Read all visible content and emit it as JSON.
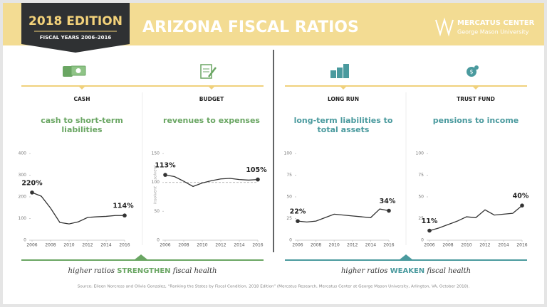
{
  "header": {
    "edition": "2018 EDITION",
    "years": "FISCAL YEARS 2006–2016",
    "title": "ARIZONA FISCAL RATIOS",
    "org": "MERCATUS CENTER",
    "org_sub": "George Mason University"
  },
  "chart_data": [
    {
      "type": "line",
      "title": "CASH",
      "subtitle": "cash to short-term liabilities",
      "accent": "#6aa663",
      "color": "#333333",
      "x": [
        2006,
        2007,
        2008,
        2009,
        2010,
        2011,
        2012,
        2013,
        2014,
        2015,
        2016
      ],
      "values": [
        220,
        203,
        148,
        82,
        75,
        85,
        105,
        108,
        110,
        114,
        114
      ],
      "value_labels": [
        "220%",
        null,
        null,
        null,
        null,
        null,
        null,
        null,
        null,
        null,
        "114%"
      ],
      "xlim": [
        2006,
        2016
      ],
      "xticks": [
        2006,
        2008,
        2010,
        2012,
        2014,
        2016
      ],
      "ylim": [
        0,
        400
      ],
      "yticks": [
        0,
        100,
        200,
        300,
        400
      ]
    },
    {
      "type": "line",
      "title": "BUDGET",
      "subtitle": "revenues to expenses",
      "accent": "#6aa663",
      "color": "#333333",
      "x": [
        2006,
        2007,
        2008,
        2009,
        2010,
        2011,
        2012,
        2013,
        2014,
        2015,
        2016
      ],
      "values": [
        113,
        110,
        102,
        93,
        99,
        103,
        106,
        107,
        105,
        104,
        105
      ],
      "value_labels": [
        "113%",
        null,
        null,
        null,
        null,
        null,
        null,
        null,
        null,
        null,
        "105%"
      ],
      "xlim": [
        2006,
        2016
      ],
      "xticks": [
        2006,
        2008,
        2010,
        2012,
        2014,
        2016
      ],
      "ylim": [
        0,
        150
      ],
      "yticks": [
        0,
        50,
        100,
        150
      ],
      "reference_line": 100,
      "annotations": [
        "solvent",
        "insolvent"
      ]
    },
    {
      "type": "line",
      "title": "LONG RUN",
      "subtitle": "long-term liabilities to total assets",
      "accent": "#4a9a9e",
      "color": "#333333",
      "x": [
        2006,
        2007,
        2008,
        2009,
        2010,
        2011,
        2012,
        2013,
        2014,
        2015,
        2016
      ],
      "values": [
        22,
        21,
        22,
        26,
        30,
        29,
        28,
        27,
        26,
        36,
        34
      ],
      "value_labels": [
        "22%",
        null,
        null,
        null,
        null,
        null,
        null,
        null,
        null,
        null,
        "34%"
      ],
      "xlim": [
        2006,
        2016
      ],
      "xticks": [
        2006,
        2008,
        2010,
        2012,
        2014,
        2016
      ],
      "ylim": [
        0,
        100
      ],
      "yticks": [
        0,
        25,
        50,
        75,
        100
      ]
    },
    {
      "type": "line",
      "title": "TRUST FUND",
      "subtitle": "pensions to income",
      "accent": "#4a9a9e",
      "color": "#333333",
      "x": [
        2006,
        2007,
        2008,
        2009,
        2010,
        2011,
        2012,
        2013,
        2014,
        2015,
        2016
      ],
      "values": [
        11,
        14,
        18,
        22,
        27,
        26,
        35,
        29,
        30,
        31,
        40
      ],
      "value_labels": [
        "11%",
        null,
        null,
        null,
        null,
        null,
        null,
        null,
        null,
        null,
        "40%"
      ],
      "xlim": [
        2006,
        2016
      ],
      "xticks": [
        2006,
        2008,
        2010,
        2012,
        2014,
        2016
      ],
      "ylim": [
        0,
        100
      ],
      "yticks": [
        0,
        25,
        50,
        75,
        100
      ]
    }
  ],
  "footer": {
    "left": {
      "pre": "higher ratios",
      "emph": "STRENGTHEN",
      "post": "fiscal health"
    },
    "right": {
      "pre": "higher ratios",
      "emph": "WEAKEN",
      "post": "fiscal health"
    },
    "source": "Source: Eileen Norcross and Olivia Gonzalez, “Ranking the States by Fiscal Condition, 2018 Edition” (Mercatus Research, Mercatus Center at George Mason University, Arlington, VA, October 2018)."
  }
}
